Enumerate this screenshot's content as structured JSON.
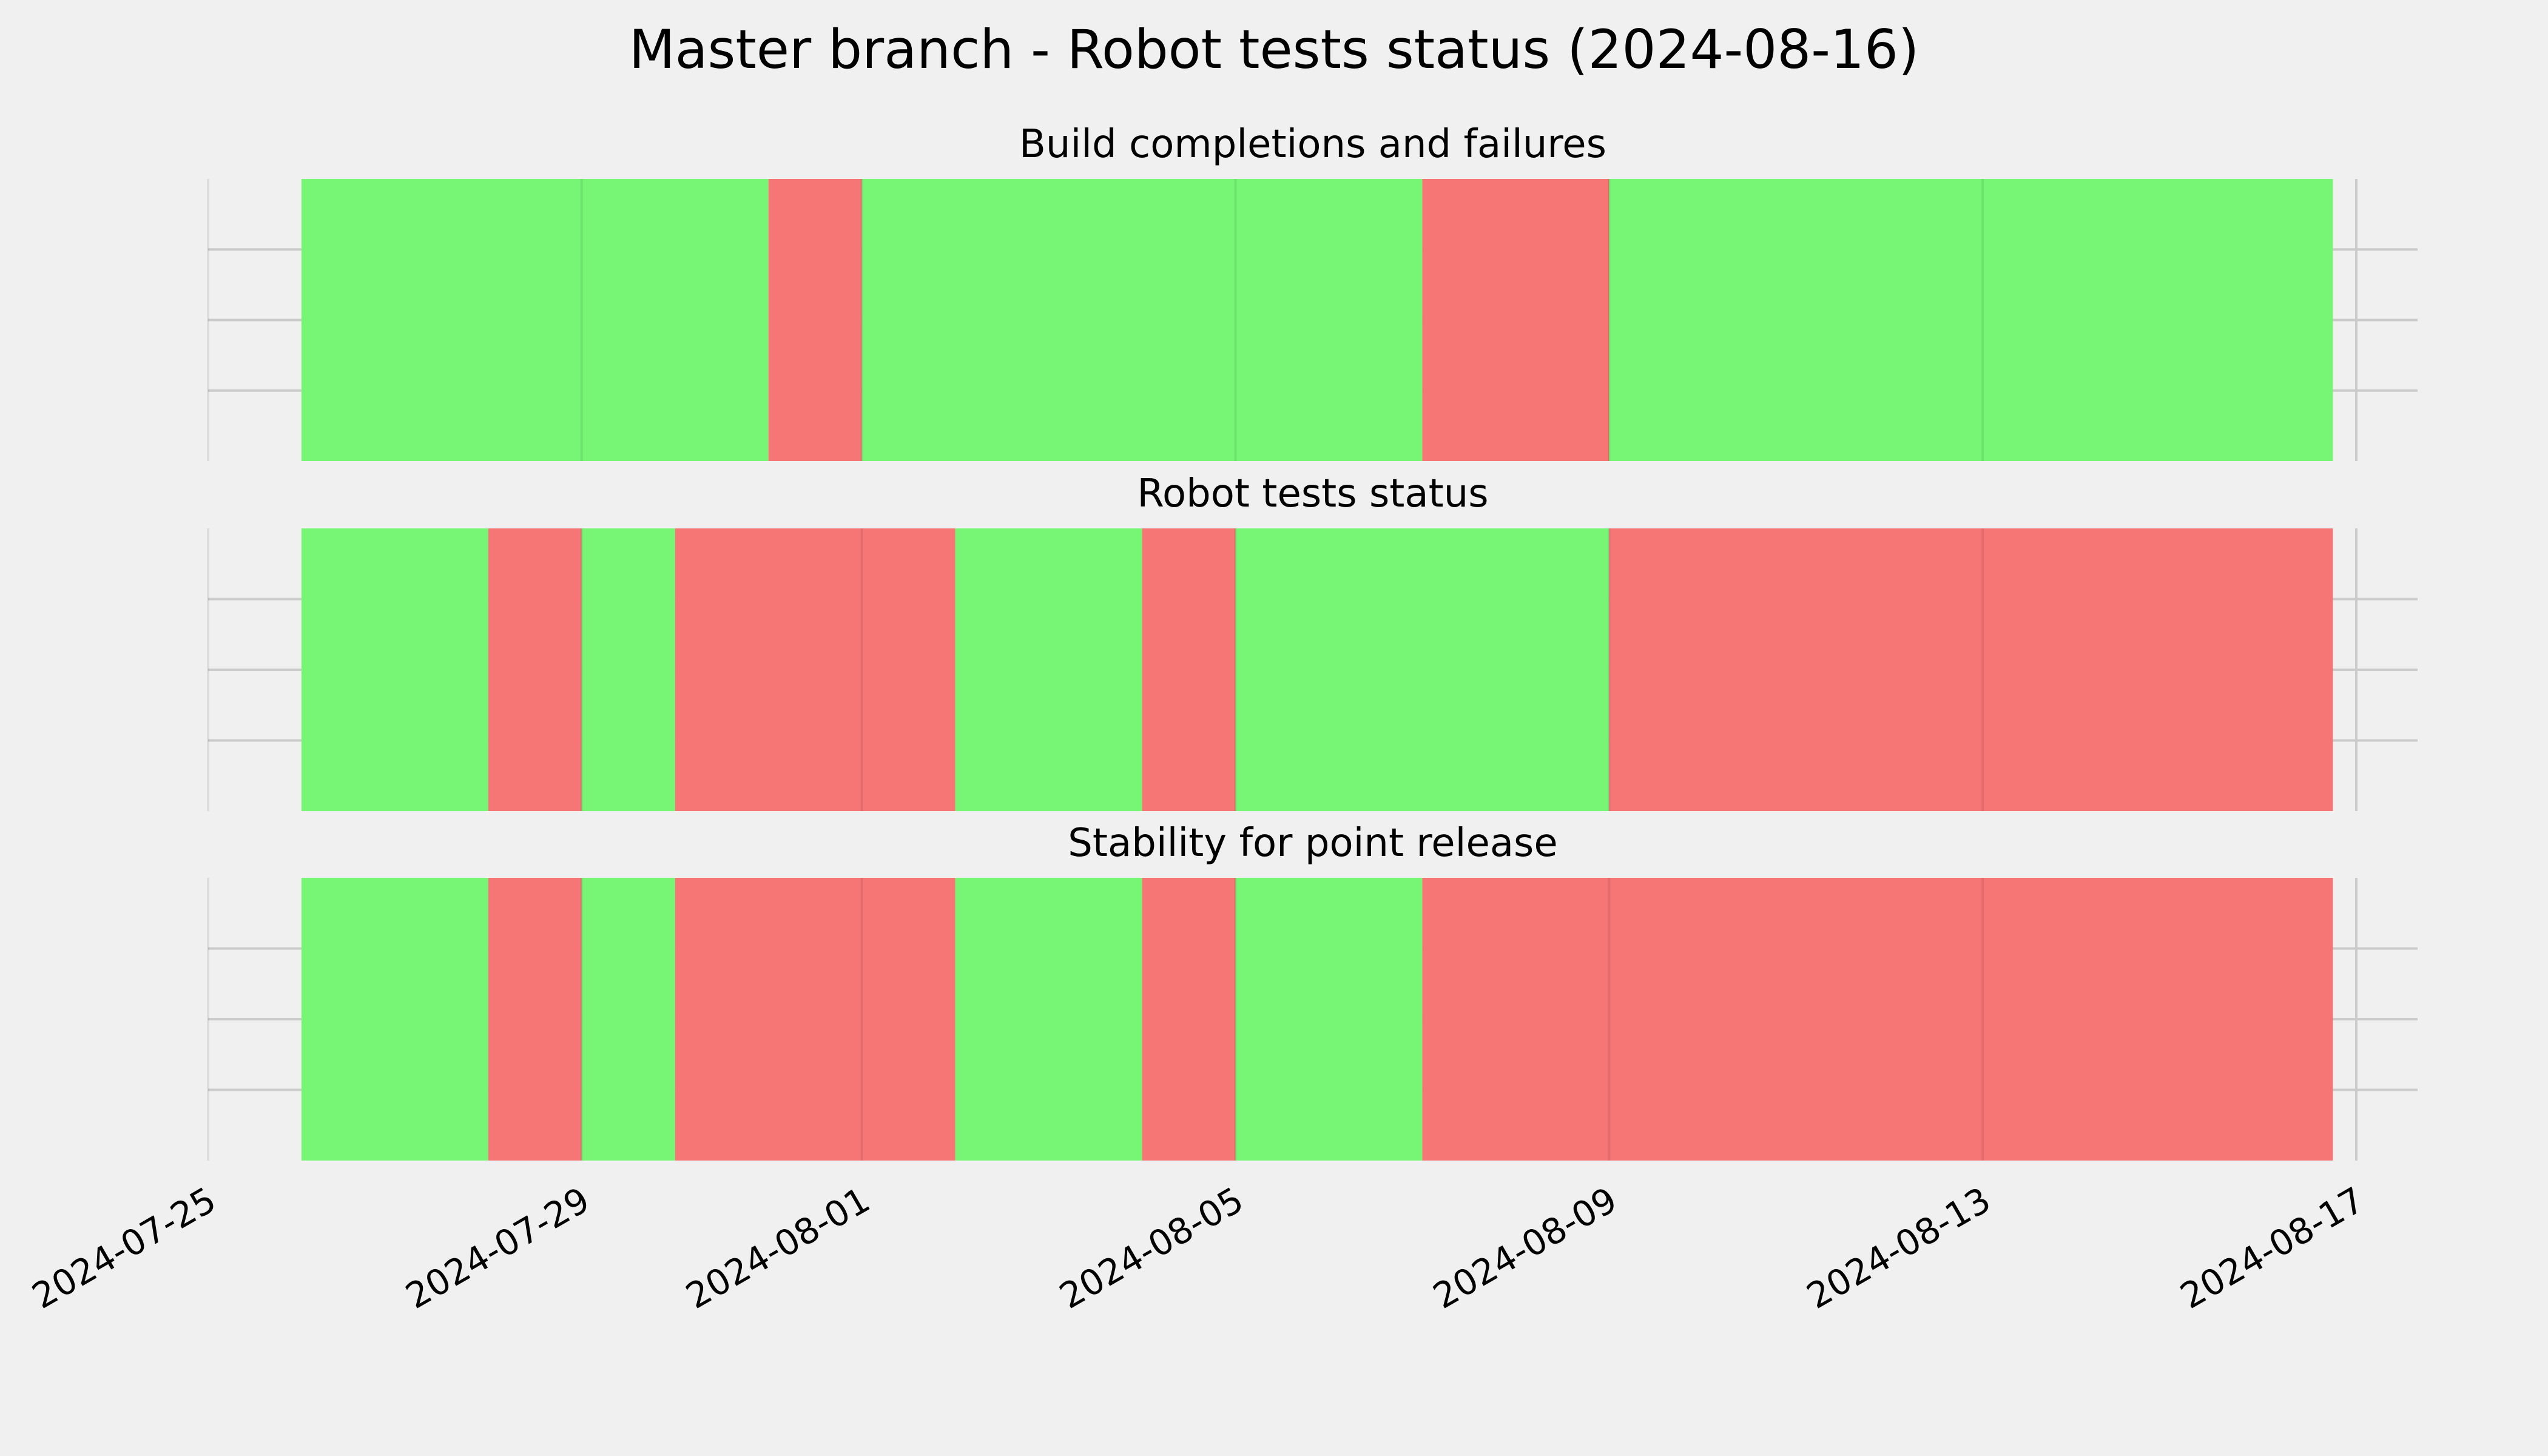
{
  "chart_data": {
    "type": "timeline",
    "title": "Master branch - Robot tests status (2024-08-16)",
    "xlim": [
      "2024-07-25",
      "2024-08-17"
    ],
    "x_ticks": [
      "2024-07-25",
      "2024-07-29",
      "2024-08-01",
      "2024-08-05",
      "2024-08-09",
      "2024-08-13",
      "2024-08-17"
    ],
    "grid": true,
    "colors": {
      "pass": "#77f676",
      "fail": "#f67676",
      "background": "#f0f0f0",
      "grid": "#cbcbcb"
    },
    "panels": [
      {
        "title": "Build completions and failures",
        "segments": [
          {
            "start": "2024-07-26 00:00",
            "end": "2024-07-31 00:00",
            "status": "pass"
          },
          {
            "start": "2024-07-31 00:00",
            "end": "2024-08-01 00:00",
            "status": "fail"
          },
          {
            "start": "2024-08-01 00:00",
            "end": "2024-08-07 00:00",
            "status": "pass"
          },
          {
            "start": "2024-08-07 00:00",
            "end": "2024-08-09 00:00",
            "status": "fail"
          },
          {
            "start": "2024-08-09 00:00",
            "end": "2024-08-16 18:00",
            "status": "pass"
          }
        ]
      },
      {
        "title": "Robot tests status",
        "segments": [
          {
            "start": "2024-07-26 00:00",
            "end": "2024-07-28 00:00",
            "status": "pass"
          },
          {
            "start": "2024-07-28 00:00",
            "end": "2024-07-29 00:00",
            "status": "fail"
          },
          {
            "start": "2024-07-29 00:00",
            "end": "2024-07-30 00:00",
            "status": "pass"
          },
          {
            "start": "2024-07-30 00:00",
            "end": "2024-08-02 00:00",
            "status": "fail"
          },
          {
            "start": "2024-08-02 00:00",
            "end": "2024-08-04 00:00",
            "status": "pass"
          },
          {
            "start": "2024-08-04 00:00",
            "end": "2024-08-05 00:00",
            "status": "fail"
          },
          {
            "start": "2024-08-05 00:00",
            "end": "2024-08-09 00:00",
            "status": "pass"
          },
          {
            "start": "2024-08-09 00:00",
            "end": "2024-08-16 18:00",
            "status": "fail"
          }
        ]
      },
      {
        "title": "Stability for point release",
        "segments": [
          {
            "start": "2024-07-26 00:00",
            "end": "2024-07-28 00:00",
            "status": "pass"
          },
          {
            "start": "2024-07-28 00:00",
            "end": "2024-07-29 00:00",
            "status": "fail"
          },
          {
            "start": "2024-07-29 00:00",
            "end": "2024-07-30 00:00",
            "status": "pass"
          },
          {
            "start": "2024-07-30 00:00",
            "end": "2024-08-02 00:00",
            "status": "fail"
          },
          {
            "start": "2024-08-02 00:00",
            "end": "2024-08-04 00:00",
            "status": "pass"
          },
          {
            "start": "2024-08-04 00:00",
            "end": "2024-08-05 00:00",
            "status": "fail"
          },
          {
            "start": "2024-08-05 00:00",
            "end": "2024-08-07 00:00",
            "status": "pass"
          },
          {
            "start": "2024-08-07 00:00",
            "end": "2024-08-16 18:00",
            "status": "fail"
          }
        ]
      }
    ]
  }
}
